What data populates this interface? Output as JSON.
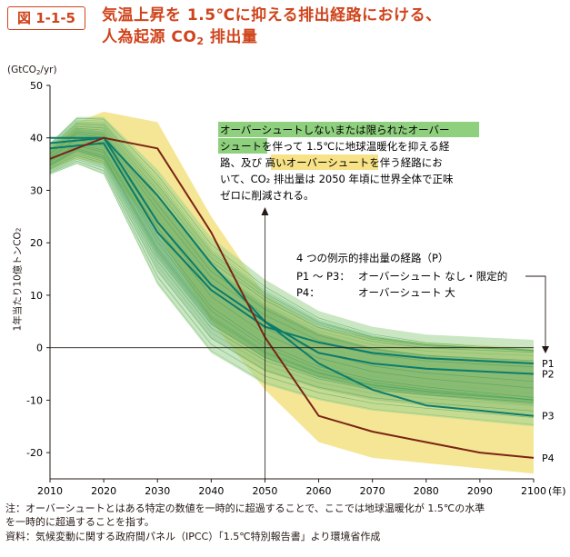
{
  "figure_label": "図 1-1-5",
  "title_line1": "気温上昇を 1.5℃に抑える排出経路における、",
  "title_line2_pre": "人為起源 CO",
  "title_line2_sub": "2",
  "title_line2_post": " 排出量",
  "unit_pre": "(GtCO",
  "unit_sub": "2",
  "unit_post": "/yr)",
  "ylabel_pre": "1年当たり10億トンCO",
  "ylabel_sub": "2",
  "x_unit": "(年)",
  "annotation": {
    "part1": "オーバーシュートしないまたは限られたオーバー",
    "part2": "シュート",
    "part3": "を伴って 1.5℃に地球温暖化を抑える経",
    "part4": "路、及び ",
    "part5": "高いオーバーシュート",
    "part6": "を伴う経路にお",
    "part7": "いて、CO₂ 排出量は 2050 年頃に世界全体で正味",
    "part8": "ゼロに削減される。"
  },
  "legend": {
    "title": "4 つの例示的排出量の経路（P）",
    "row1_key": "P1 〜 P3：",
    "row1_val": "オーバーシュート なし・限定的",
    "row2_key": "P4：",
    "row2_val": "オーバーシュート 大"
  },
  "notes": {
    "line1": "注：オーバーシュートとはある特定の数値を一時的に超過することで、ここでは地球温暖化が 1.5℃の水準",
    "line2": "を一時的に超過することを指す。",
    "line3": "資料：気候変動に関する政府間パネル（IPCC）「1.5℃特別報告書」より環境省作成"
  },
  "colors": {
    "accent": "#d0441c",
    "green_band": "#9fd28f",
    "green_dark": "#2e8b45",
    "yellow_band": "#f4e38a",
    "teal_line": "#0c7b6c",
    "p4_line": "#7a2515",
    "highlight_green": "#8fd07e",
    "highlight_yellow": "#f7e287"
  },
  "chart_data": {
    "type": "line",
    "title": "気温上昇を 1.5℃に抑える排出経路における、人為起源 CO2 排出量",
    "xlabel": "(年)",
    "ylabel": "1年当たり10億トンCO2 (GtCO2/yr)",
    "xlim": [
      2010,
      2100
    ],
    "ylim": [
      -25,
      50
    ],
    "x_ticks": [
      2010,
      2020,
      2030,
      2040,
      2050,
      2060,
      2070,
      2080,
      2090,
      2100
    ],
    "y_ticks": [
      50,
      40,
      30,
      20,
      10,
      0,
      -10,
      -20
    ],
    "reference_line_year": 2050,
    "series": [
      {
        "name": "P1",
        "x": [
          2010,
          2020,
          2030,
          2040,
          2050,
          2060,
          2070,
          2080,
          2090,
          2100
        ],
        "values": [
          38,
          39,
          22,
          11,
          4,
          1,
          -1,
          -2,
          -2.5,
          -3
        ]
      },
      {
        "name": "P2",
        "x": [
          2010,
          2020,
          2030,
          2040,
          2050,
          2060,
          2070,
          2080,
          2090,
          2100
        ],
        "values": [
          39,
          40,
          24,
          12,
          5,
          -1,
          -3,
          -4,
          -4.5,
          -5
        ]
      },
      {
        "name": "P3",
        "x": [
          2010,
          2020,
          2030,
          2040,
          2050,
          2060,
          2070,
          2080,
          2090,
          2100
        ],
        "values": [
          40,
          40,
          29,
          16,
          5,
          -3,
          -8,
          -11,
          -12,
          -13
        ]
      },
      {
        "name": "P4",
        "x": [
          2010,
          2020,
          2030,
          2040,
          2050,
          2060,
          2070,
          2080,
          2090,
          2100
        ],
        "values": [
          36,
          40,
          38,
          22,
          2,
          -13,
          -16,
          -18,
          -20,
          -21
        ]
      }
    ],
    "bands": [
      {
        "name": "high-overshoot-range",
        "x": [
          2010,
          2015,
          2020,
          2030,
          2040,
          2050,
          2060,
          2070,
          2080,
          2090,
          2100
        ],
        "upper": [
          38,
          43,
          45,
          43,
          25,
          10,
          4,
          2,
          1,
          0.5,
          0
        ],
        "lower": [
          34,
          36,
          35,
          22,
          5,
          -8,
          -18,
          -21,
          -22,
          -23,
          -24
        ]
      },
      {
        "name": "no-or-limited-overshoot-range",
        "x": [
          2010,
          2015,
          2020,
          2030,
          2040,
          2050,
          2060,
          2070,
          2080,
          2090,
          2100
        ],
        "upper": [
          39,
          44,
          44,
          34,
          21,
          13,
          7,
          4,
          2.5,
          2,
          1.5
        ],
        "lower": [
          33,
          35,
          33,
          12,
          -1,
          -7,
          -10,
          -12,
          -13,
          -14,
          -15
        ]
      }
    ],
    "labels": [
      "P1",
      "P2",
      "P3",
      "P4"
    ]
  }
}
